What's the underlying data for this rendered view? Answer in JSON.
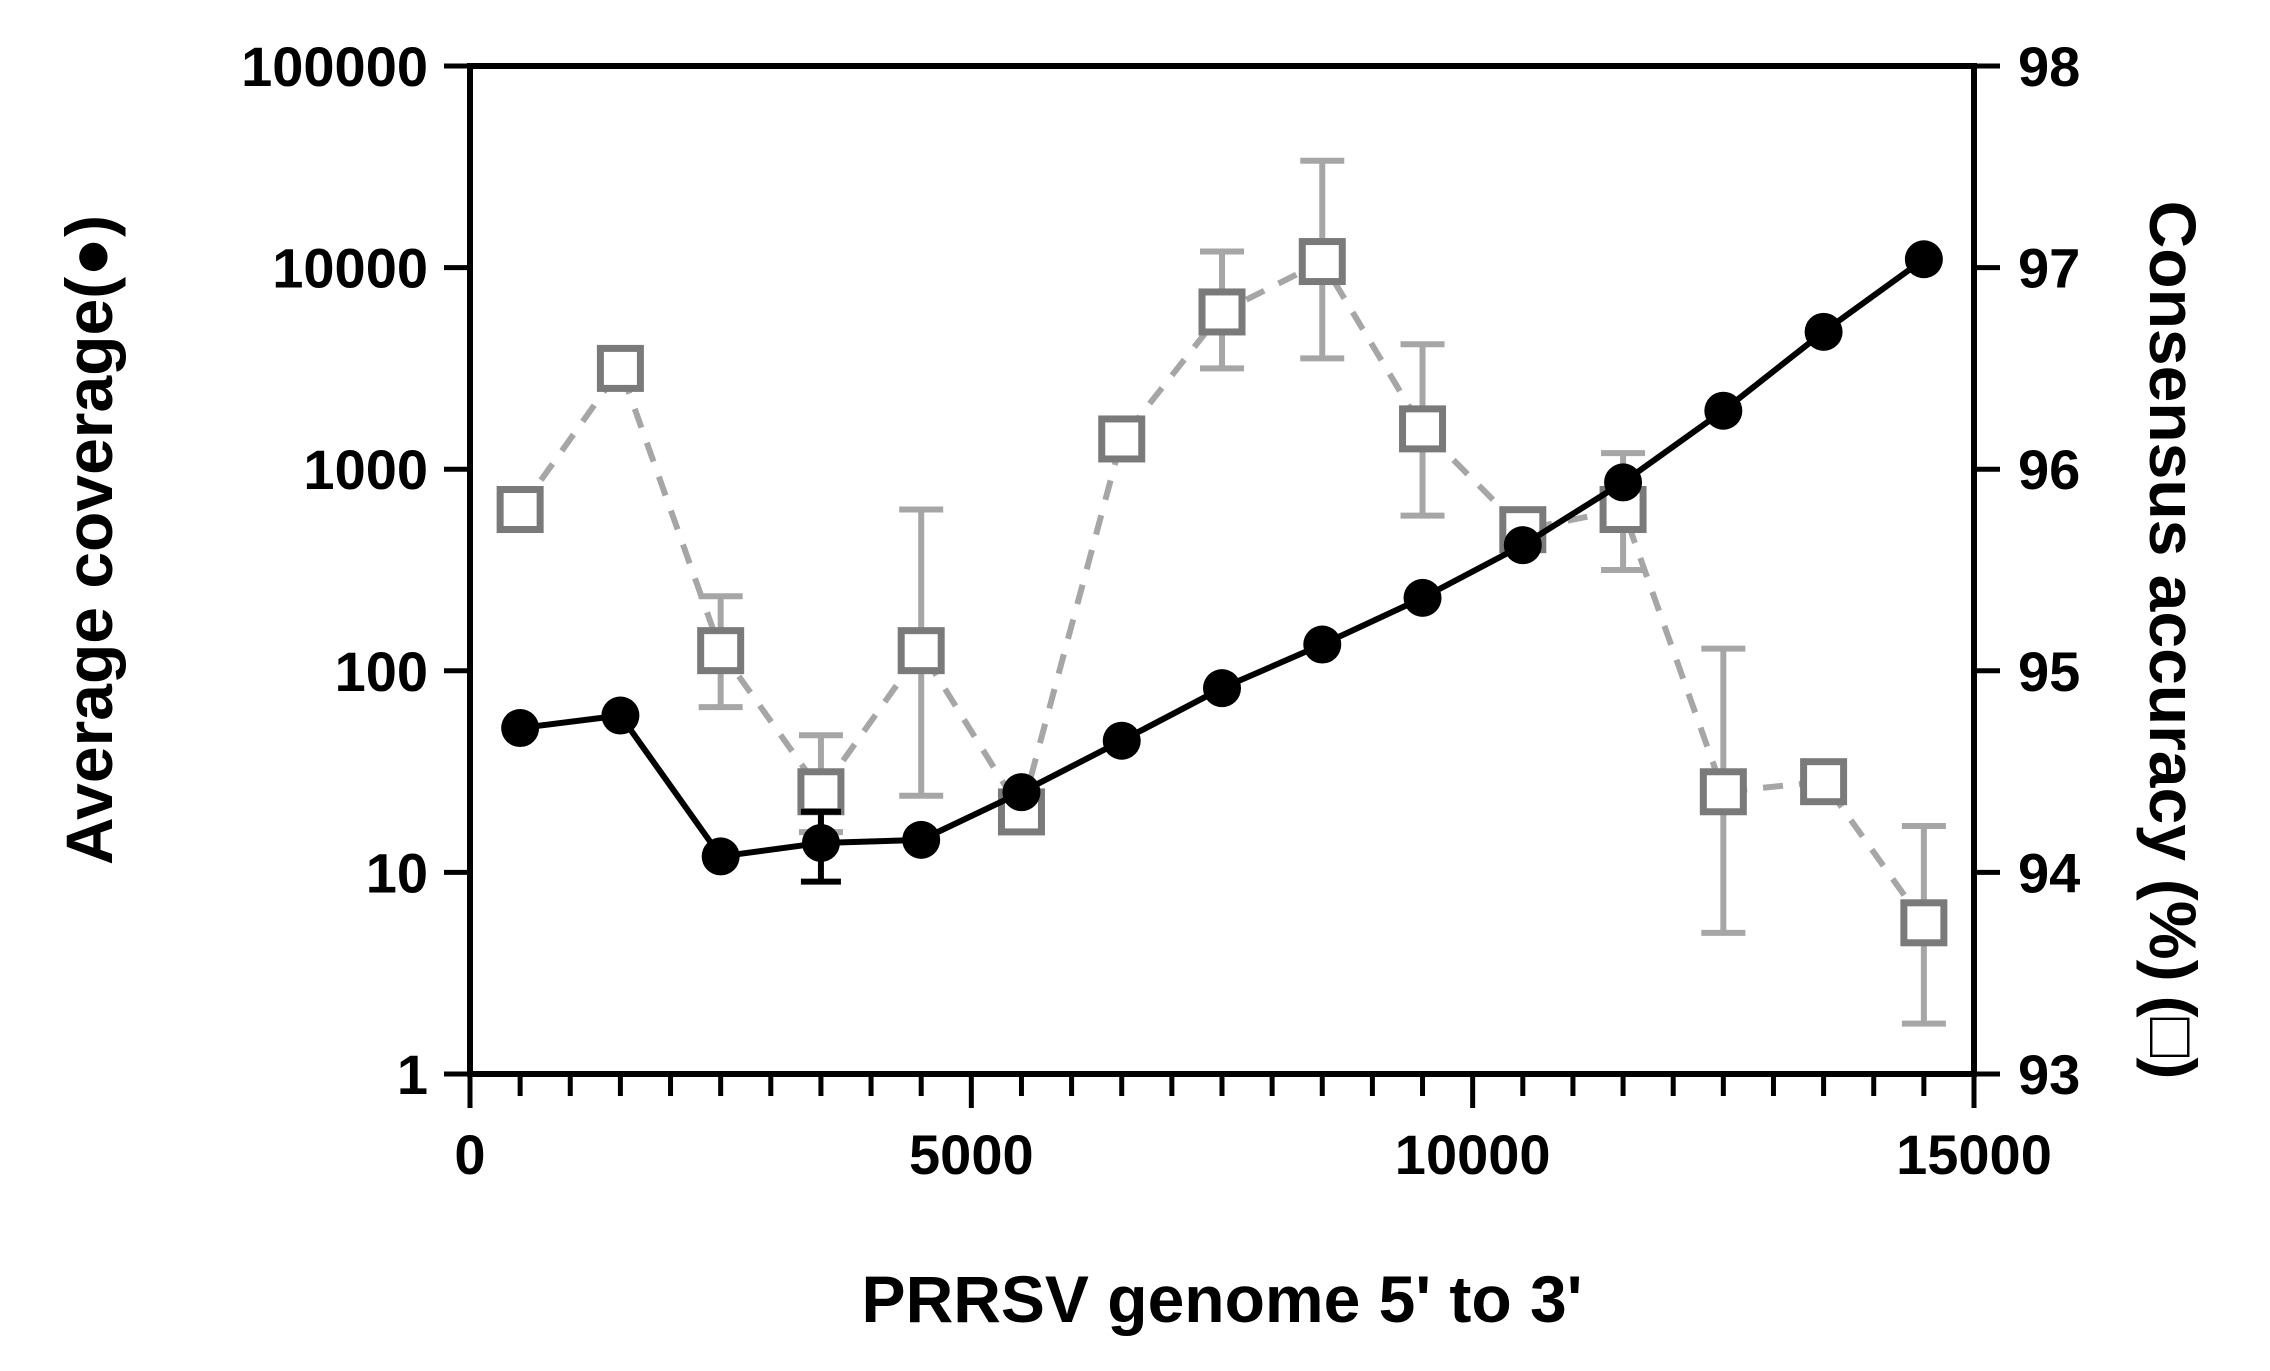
{
  "chart_data": {
    "type": "line",
    "title": "",
    "xlabel": "PRRSV genome 5' to 3'",
    "ylabel_left": "Average coverage",
    "ylabel_left_marker": "(●)",
    "ylabel_right": "Consensus accuracy",
    "ylabel_right_unit": "(%)",
    "ylabel_right_marker": "(□)",
    "xlim": [
      0,
      15000
    ],
    "xticks": [
      0,
      5000,
      10000,
      15000
    ],
    "xtick_labels": [
      "0",
      "5000",
      "10000",
      "15000"
    ],
    "ylim_left": [
      1,
      100000
    ],
    "yscale_left": "log",
    "yticks_left": [
      1,
      10,
      100,
      1000,
      10000,
      100000
    ],
    "ytick_labels_left": [
      "1",
      "10",
      "100",
      "1000",
      "10000",
      "100000"
    ],
    "ylim_right": [
      93,
      98
    ],
    "yticks_right": [
      93,
      94,
      95,
      96,
      97,
      98
    ],
    "ytick_labels_right": [
      "93",
      "94",
      "95",
      "96",
      "97",
      "98"
    ],
    "series": [
      {
        "name": "Average coverage",
        "axis": "left",
        "marker": "filled-circle",
        "line": "solid",
        "color": "#000000",
        "x": [
          500,
          1500,
          2500,
          3500,
          4500,
          5500,
          6500,
          7500,
          8500,
          9500,
          10500,
          11500,
          12500,
          13500,
          14500
        ],
        "values": [
          52,
          60,
          12,
          14,
          14.5,
          25,
          45,
          82,
          135,
          230,
          420,
          860,
          1950,
          4800,
          11000
        ],
        "err_low": [
          null,
          null,
          null,
          9,
          null,
          null,
          null,
          null,
          null,
          null,
          null,
          null,
          null,
          null,
          null
        ],
        "err_high": [
          null,
          null,
          null,
          20,
          null,
          null,
          null,
          null,
          null,
          null,
          null,
          null,
          null,
          null,
          null
        ]
      },
      {
        "name": "Consensus accuracy",
        "axis": "right",
        "marker": "open-square",
        "line": "dashed",
        "color": "#8c8c8c",
        "x": [
          500,
          1500,
          2500,
          3500,
          4500,
          5500,
          6500,
          7500,
          8500,
          9500,
          10500,
          11500,
          12500,
          13500,
          14500
        ],
        "values": [
          95.8,
          96.5,
          95.1,
          94.4,
          95.1,
          94.3,
          96.15,
          96.78,
          97.03,
          96.2,
          95.7,
          95.8,
          94.4,
          94.45,
          93.75
        ],
        "err_low": [
          95.75,
          96.4,
          94.82,
          94.2,
          94.38,
          94.22,
          null,
          96.5,
          96.55,
          95.77,
          95.67,
          95.5,
          93.7,
          null,
          93.25
        ],
        "err_high": [
          95.85,
          96.6,
          95.37,
          94.68,
          95.8,
          94.38,
          null,
          97.08,
          97.53,
          96.62,
          95.77,
          96.08,
          95.11,
          null,
          94.23
        ]
      }
    ]
  }
}
